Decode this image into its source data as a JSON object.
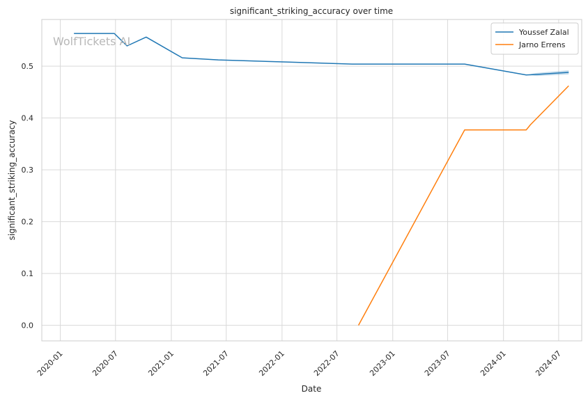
{
  "chart_data": {
    "type": "line",
    "title": "significant_striking_accuracy over time",
    "xlabel": "Date",
    "ylabel": "significant_striking_accuracy",
    "watermark": "WolfTickets AI",
    "x_ticks": [
      "2020-01",
      "2020-07",
      "2021-01",
      "2021-07",
      "2022-01",
      "2022-07",
      "2023-01",
      "2023-07",
      "2024-01",
      "2024-07"
    ],
    "y_ticks": [
      "0.0",
      "0.1",
      "0.2",
      "0.3",
      "0.4",
      "0.5"
    ],
    "xlim": [
      "2019-11-01",
      "2024-09-15"
    ],
    "ylim": [
      -0.03,
      0.59
    ],
    "grid": true,
    "legend_position": "top-right",
    "series": [
      {
        "name": "Youssef Zalal",
        "color": "#1f77b4",
        "points": [
          [
            "2020-02-15",
            0.563
          ],
          [
            "2020-06-27",
            0.563
          ],
          [
            "2020-08-08",
            0.539
          ],
          [
            "2020-10-10",
            0.556
          ],
          [
            "2021-02-06",
            0.516
          ],
          [
            "2021-06-05",
            0.512
          ],
          [
            "2022-01-15",
            0.508
          ],
          [
            "2022-08-20",
            0.504
          ],
          [
            "2023-03-18",
            0.504
          ],
          [
            "2023-08-26",
            0.504
          ],
          [
            "2024-03-16",
            0.483
          ],
          [
            "2024-04-20",
            0.484
          ],
          [
            "2024-08-03",
            0.488
          ]
        ],
        "band": [
          [
            "2024-03-16",
            0.483,
            0.483
          ],
          [
            "2024-04-20",
            0.481,
            0.487
          ],
          [
            "2024-08-03",
            0.484,
            0.492
          ]
        ]
      },
      {
        "name": "Jarno Errens",
        "color": "#ff7f0e",
        "points": [
          [
            "2022-09-10",
            0.0
          ],
          [
            "2023-08-26",
            0.377
          ],
          [
            "2024-03-16",
            0.377
          ],
          [
            "2024-03-30",
            0.387
          ],
          [
            "2024-08-03",
            0.462
          ]
        ]
      }
    ]
  }
}
